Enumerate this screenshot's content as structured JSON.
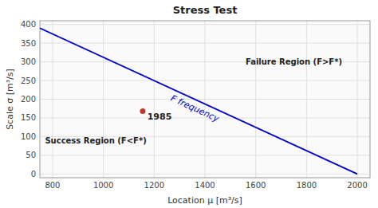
{
  "chart_data": {
    "type": "line",
    "title": "Stress Test",
    "x_label": "Location μ [m³/s]",
    "y_label": "Scale σ [m³/s]",
    "xlim": [
      750,
      2050
    ],
    "ylim": [
      -10,
      410
    ],
    "xticks": [
      800,
      1000,
      1200,
      1400,
      1600,
      1800,
      2000
    ],
    "yticks": [
      0,
      50,
      100,
      150,
      200,
      250,
      300,
      350,
      400
    ],
    "grid": true,
    "series": [
      {
        "type": "line",
        "color": "#0000cc",
        "x": [
          750,
          2000
        ],
        "values": [
          390,
          0
        ]
      },
      {
        "type": "scatter",
        "color": "#c0392b",
        "x": [
          1155
        ],
        "values": [
          168
        ]
      }
    ],
    "annotations": [
      {
        "text": "F frequency",
        "x": 1360,
        "y": 175,
        "color": "#0000cc"
      },
      {
        "text": "1985",
        "x": 1173,
        "y": 163
      },
      {
        "text": "Failure Region (F>F*)",
        "x": 1750,
        "y": 300
      },
      {
        "text": "Success Region (F<F*)",
        "x": 970,
        "y": 90
      }
    ]
  }
}
